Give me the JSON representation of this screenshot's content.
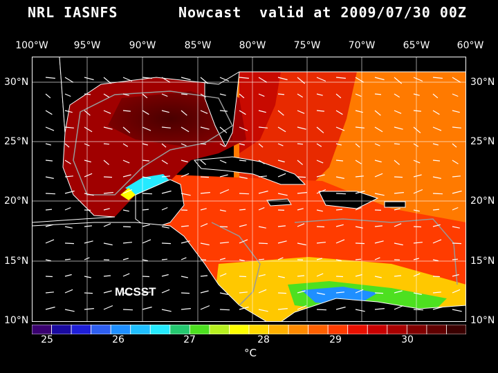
{
  "title": {
    "left": "NRL IASNFS",
    "mid": "Nowcast",
    "right": "valid at 2009/07/30 00Z"
  },
  "map": {
    "lon_labels": [
      "100°W",
      "95°W",
      "90°W",
      "85°W",
      "80°W",
      "75°W",
      "70°W",
      "65°W",
      "60°W"
    ],
    "lat_labels": [
      "30°N",
      "25°N",
      "20°N",
      "15°N",
      "10°N"
    ],
    "lon_range": [
      -100,
      -60
    ],
    "lat_range": [
      10,
      31
    ],
    "overlay_label": "MCSST",
    "grid": true
  },
  "colorbar": {
    "colors": [
      "#3a0070",
      "#1a0aa0",
      "#1f1fd8",
      "#2f5ff0",
      "#1f8fff",
      "#20bfff",
      "#25eaff",
      "#25c870",
      "#4de020",
      "#b8f020",
      "#ffff00",
      "#ffd800",
      "#ffb000",
      "#ff8a00",
      "#ff6000",
      "#ff3c00",
      "#e81000",
      "#c80000",
      "#a80000",
      "#800000",
      "#600000",
      "#3a0000"
    ],
    "tick_labels": [
      "25",
      "26",
      "27",
      "28",
      "29",
      "30"
    ],
    "unit": "°C"
  }
}
